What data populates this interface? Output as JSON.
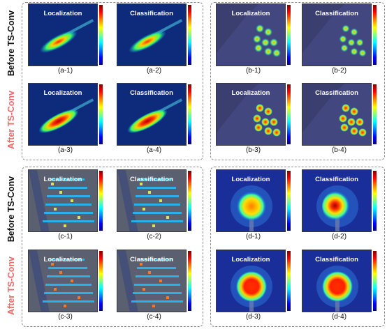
{
  "row_labels": {
    "before": "Before TS-Conv",
    "after": "After TS-Conv"
  },
  "titles": {
    "loc": "Localization",
    "cls": "Classification"
  },
  "captions": {
    "a1": "(a-1)",
    "a2": "(a-2)",
    "a3": "(a-3)",
    "a4": "(a-4)",
    "b1": "(b-1)",
    "b2": "(b-2)",
    "b3": "(b-3)",
    "b4": "(b-4)",
    "c1": "(c-1)",
    "c2": "(c-2)",
    "c3": "(c-3)",
    "c4": "(c-4)",
    "d1": "(d-1)",
    "d2": "(d-2)",
    "d3": "(d-3)",
    "d4": "(d-4)"
  },
  "colorbar": {
    "colormap": "jet",
    "min": "0.0",
    "max": "1.0"
  },
  "colors": {
    "before_label": "#111111",
    "after_label": "#f06868",
    "border": "#8a8a8a"
  }
}
